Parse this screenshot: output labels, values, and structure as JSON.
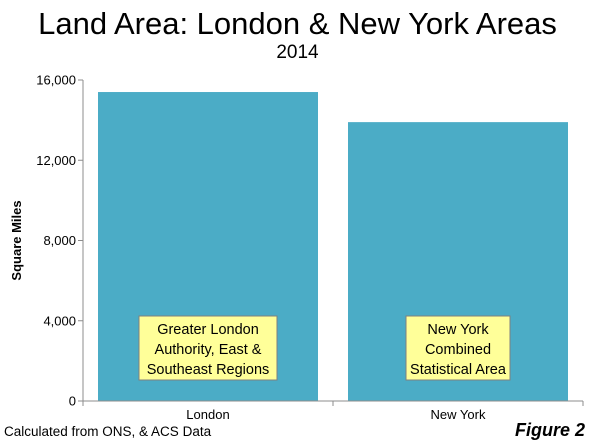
{
  "chart_data": {
    "type": "bar",
    "title": "Land Area: London & New York Areas",
    "subtitle": "2014",
    "categories": [
      "London",
      "New York"
    ],
    "values": [
      15400,
      13900
    ],
    "ylabel": "Square Miles",
    "ylim": [
      0,
      16000
    ],
    "yticks": [
      0,
      4000,
      8000,
      12000,
      16000
    ],
    "ytick_labels": [
      "0",
      "4,000",
      "8,000",
      "12,000",
      "16,000"
    ],
    "bar_color": "#4bacc6",
    "annotation_color": "#ffff99",
    "annotations": [
      [
        "Greater London",
        "Authority, East &",
        "Southeast Regions"
      ],
      [
        "New York",
        "Combined",
        "Statistical Area"
      ]
    ],
    "grid": false
  },
  "footnote": "Calculated from ONS, & ACS Data",
  "figure_label": "Figure 2"
}
